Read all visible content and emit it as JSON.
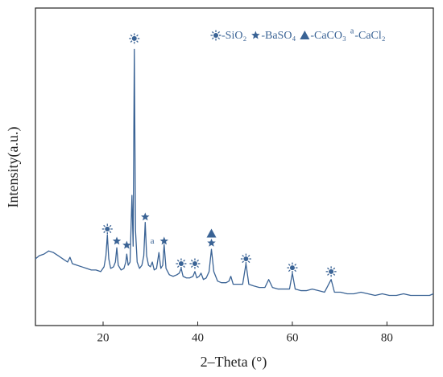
{
  "chart_data": {
    "type": "line",
    "xlabel": "2–Theta (°)",
    "ylabel": "Intensity(a.u.)",
    "xlim": [
      5.7,
      89.8
    ],
    "ylim": [
      0,
      100
    ],
    "xticks": [
      20,
      40,
      60,
      80
    ],
    "color": "#3a6395",
    "series": [
      {
        "x": [
          5.7,
          6.5,
          7.5,
          8.5,
          9.5,
          10.5,
          11.5,
          12.5,
          13.0,
          13.5,
          14.5,
          15.5,
          16.5,
          17.5,
          18.5,
          19.5,
          20.2,
          20.6,
          20.9,
          21.2,
          21.6,
          22.2,
          22.6,
          22.9,
          23.2,
          23.8,
          24.4,
          24.8,
          25.0,
          25.3,
          25.7,
          26.1,
          26.35,
          26.6,
          26.85,
          27.2,
          27.7,
          28.2,
          28.6,
          28.9,
          29.2,
          29.6,
          30.0,
          30.4,
          30.8,
          31.3,
          31.8,
          32.2,
          32.6,
          32.9,
          33.3,
          34.0,
          34.8,
          35.6,
          36.1,
          36.5,
          36.9,
          37.6,
          38.3,
          39.0,
          39.4,
          39.8,
          40.3,
          40.7,
          41.2,
          41.8,
          42.4,
          42.9,
          43.4,
          44.2,
          45.0,
          46.0,
          46.6,
          47.0,
          47.5,
          48.5,
          49.5,
          50.2,
          50.8,
          51.8,
          53.0,
          54.2,
          55.0,
          55.8,
          57.0,
          58.3,
          59.4,
          60.0,
          60.6,
          61.8,
          63.0,
          64.2,
          65.5,
          66.8,
          68.2,
          68.9,
          70.2,
          71.6,
          73.0,
          74.5,
          76.0,
          77.5,
          79.0,
          80.5,
          82.0,
          83.5,
          85.0,
          86.5,
          88.0,
          89.0,
          89.8
        ],
        "values": [
          21,
          22,
          22.5,
          23.5,
          23,
          22,
          21,
          20,
          21.5,
          19.5,
          19,
          18.5,
          18,
          17.5,
          17.5,
          17,
          18.5,
          22,
          28.5,
          21,
          18,
          18.5,
          20,
          24.5,
          19,
          17.5,
          18,
          20,
          22.5,
          19,
          20,
          41,
          25,
          87,
          30,
          20,
          18,
          19,
          22,
          32.5,
          22,
          19,
          18.5,
          20,
          17.5,
          18,
          23,
          18,
          19,
          25.5,
          18,
          16,
          15.5,
          16,
          16.5,
          18,
          15.5,
          15,
          15,
          15.5,
          17,
          15,
          15.5,
          16.5,
          14.5,
          15,
          17,
          24,
          17,
          14,
          13.5,
          13.5,
          14,
          15.5,
          13,
          13,
          13,
          19.5,
          13,
          12.5,
          12,
          12,
          14.5,
          12,
          11.5,
          11.5,
          11.5,
          16.5,
          11.5,
          11,
          11,
          11.5,
          11,
          10.5,
          14.5,
          10.5,
          10.5,
          10,
          10,
          10.5,
          10,
          9.5,
          10,
          9.5,
          9.5,
          10,
          9.5,
          9.5,
          9.5,
          9.5,
          10
        ]
      }
    ],
    "annotations": [
      {
        "marker": "sun",
        "x": 26.6,
        "y": 90.4
      },
      {
        "marker": "sun",
        "x": 20.9,
        "y": 30.4
      },
      {
        "marker": "star",
        "x": 22.9,
        "y": 26.6
      },
      {
        "marker": "star",
        "x": 25.0,
        "y": 25.3
      },
      {
        "marker": "star",
        "x": 28.9,
        "y": 34.2
      },
      {
        "marker": "letter",
        "text": "a",
        "x": 30.4,
        "y": 26.5
      },
      {
        "marker": "star",
        "x": 32.9,
        "y": 26.6
      },
      {
        "marker": "sun",
        "x": 36.5,
        "y": 19.5
      },
      {
        "marker": "sun",
        "x": 39.4,
        "y": 19.5
      },
      {
        "marker": "triangle",
        "x": 42.9,
        "y": 29
      },
      {
        "marker": "star",
        "x": 42.9,
        "y": 26
      },
      {
        "marker": "sun",
        "x": 50.2,
        "y": 21
      },
      {
        "marker": "sun",
        "x": 60.0,
        "y": 18.2
      },
      {
        "marker": "sun",
        "x": 68.2,
        "y": 17
      }
    ],
    "legend": [
      {
        "marker": "sun",
        "label": "-SiO₂"
      },
      {
        "marker": "star",
        "label": "-BaSO₄"
      },
      {
        "marker": "triangle",
        "label": "-CaCO₃"
      },
      {
        "marker": "letter",
        "text": "a",
        "label": "-CaCl₂"
      }
    ]
  }
}
